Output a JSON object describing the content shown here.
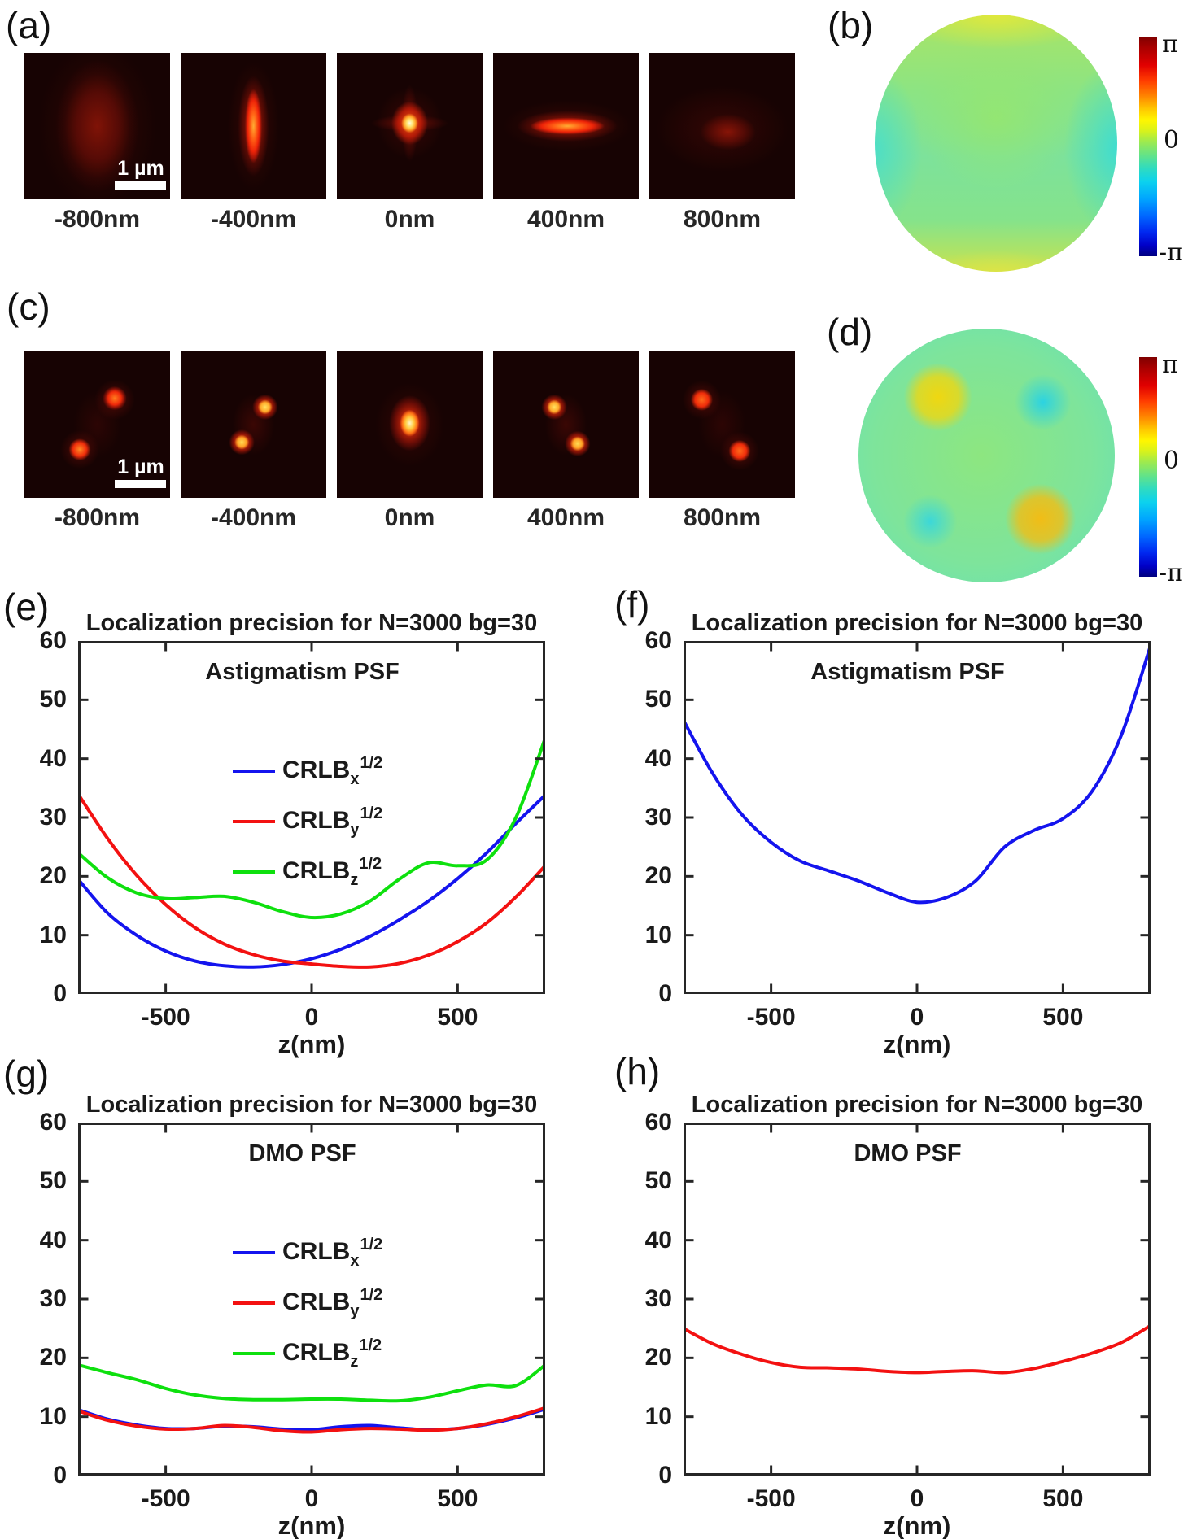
{
  "panel_a": {
    "letter": "(a)",
    "scale_bar_label": "1 µm",
    "z_labels": [
      "-800nm",
      "-400nm",
      "0nm",
      "400nm",
      "800nm"
    ]
  },
  "panel_b": {
    "letter": "(b)",
    "colorbar": {
      "max": "π",
      "zero": "0",
      "min": "-π"
    }
  },
  "panel_c": {
    "letter": "(c)",
    "scale_bar_label": "1 µm",
    "z_labels": [
      "-800nm",
      "-400nm",
      "0nm",
      "400nm",
      "800nm"
    ]
  },
  "panel_d": {
    "letter": "(d)",
    "colorbar": {
      "max": "π",
      "zero": "0",
      "min": "-π"
    }
  },
  "colors": {
    "crlb_x": "#1414ee",
    "crlb_y": "#f31111",
    "crlb_z": "#0ee00e",
    "axis": "#262626"
  },
  "chart_data": [
    {
      "panel_letter": "(e)",
      "type": "line",
      "title": "Localization precision for N=3000 bg=30",
      "inner_label": "Astigmatism PSF",
      "xlabel": "z(nm)",
      "xlim": [
        -800,
        800
      ],
      "ylim": [
        0,
        60
      ],
      "xticks": [
        -500,
        0,
        500
      ],
      "yticks": [
        0,
        10,
        20,
        30,
        40,
        50,
        60
      ],
      "show_legend": true,
      "legend_position": "upper-center-left",
      "grid": false,
      "x": [
        -800,
        -700,
        -600,
        -500,
        -400,
        -300,
        -200,
        -100,
        0,
        100,
        200,
        300,
        400,
        500,
        600,
        700,
        800
      ],
      "series": [
        {
          "name": "CRLB_x^1/2",
          "legend": {
            "base": "CRLB",
            "sub": "x",
            "sup": "1/2"
          },
          "color": "#1414ee",
          "values": [
            19.5,
            13.8,
            10.0,
            7.3,
            5.6,
            4.8,
            4.6,
            5.0,
            6.0,
            7.6,
            9.8,
            12.6,
            15.8,
            19.6,
            24.0,
            29.0,
            33.8
          ]
        },
        {
          "name": "CRLB_y^1/2",
          "legend": {
            "base": "CRLB",
            "sub": "y",
            "sup": "1/2"
          },
          "color": "#f31111",
          "values": [
            34.0,
            26.5,
            20.2,
            15.2,
            11.3,
            8.5,
            6.7,
            5.6,
            5.1,
            4.7,
            4.6,
            5.2,
            6.6,
            8.9,
            12.1,
            16.5,
            21.8
          ]
        },
        {
          "name": "CRLB_z^1/2",
          "legend": {
            "base": "CRLB",
            "sub": "z",
            "sup": "1/2"
          },
          "color": "#0ee00e",
          "values": [
            24.0,
            19.8,
            17.2,
            16.2,
            16.4,
            16.6,
            15.6,
            14.0,
            13.0,
            13.6,
            15.8,
            19.5,
            22.3,
            21.8,
            22.8,
            30.0,
            43.5
          ]
        }
      ]
    },
    {
      "panel_letter": "(f)",
      "type": "line",
      "title": "Localization precision for N=3000 bg=30",
      "inner_label": "Astigmatism PSF",
      "xlabel": "z(nm)",
      "xlim": [
        -800,
        800
      ],
      "ylim": [
        0,
        60
      ],
      "xticks": [
        -500,
        0,
        500
      ],
      "yticks": [
        0,
        10,
        20,
        30,
        40,
        50,
        60
      ],
      "show_legend": false,
      "grid": false,
      "x": [
        -800,
        -700,
        -600,
        -500,
        -400,
        -300,
        -200,
        -100,
        0,
        100,
        200,
        300,
        400,
        500,
        600,
        700,
        800
      ],
      "series": [
        {
          "name": "blue-curve",
          "color": "#1414ee",
          "values": [
            46.5,
            37.5,
            30.5,
            25.8,
            22.6,
            20.9,
            19.2,
            17.2,
            15.6,
            16.4,
            19.2,
            25.0,
            27.8,
            29.8,
            34.5,
            44.0,
            59.2
          ]
        }
      ]
    },
    {
      "panel_letter": "(g)",
      "type": "line",
      "title": "Localization precision for N=3000 bg=30",
      "inner_label": "DMO PSF",
      "xlabel": "z(nm)",
      "xlim": [
        -800,
        800
      ],
      "ylim": [
        0,
        60
      ],
      "xticks": [
        -500,
        0,
        500
      ],
      "yticks": [
        0,
        10,
        20,
        30,
        40,
        50,
        60
      ],
      "show_legend": true,
      "legend_position": "upper-center-left",
      "grid": false,
      "x": [
        -800,
        -700,
        -600,
        -500,
        -400,
        -300,
        -200,
        -100,
        0,
        100,
        200,
        300,
        400,
        500,
        600,
        700,
        800
      ],
      "series": [
        {
          "name": "CRLB_x^1/2",
          "legend": {
            "base": "CRLB",
            "sub": "x",
            "sup": "1/2"
          },
          "color": "#1414ee",
          "values": [
            11.2,
            9.6,
            8.6,
            8.0,
            8.0,
            8.4,
            8.3,
            7.9,
            7.8,
            8.3,
            8.5,
            8.1,
            7.8,
            8.0,
            8.7,
            9.8,
            11.3
          ]
        },
        {
          "name": "CRLB_y^1/2",
          "legend": {
            "base": "CRLB",
            "sub": "y",
            "sup": "1/2"
          },
          "color": "#f31111",
          "values": [
            11.0,
            9.4,
            8.4,
            7.9,
            8.0,
            8.5,
            8.2,
            7.6,
            7.4,
            7.8,
            8.0,
            7.9,
            7.7,
            8.0,
            8.8,
            10.0,
            11.5
          ]
        },
        {
          "name": "CRLB_z^1/2",
          "legend": {
            "base": "CRLB",
            "sub": "z",
            "sup": "1/2"
          },
          "color": "#0ee00e",
          "values": [
            18.8,
            17.5,
            16.3,
            14.8,
            13.7,
            13.1,
            12.9,
            12.9,
            13.0,
            13.0,
            12.8,
            12.7,
            13.3,
            14.4,
            15.4,
            15.3,
            18.8
          ]
        }
      ]
    },
    {
      "panel_letter": "(h)",
      "type": "line",
      "title": "Localization precision for N=3000 bg=30",
      "inner_label": "DMO PSF",
      "xlabel": "z(nm)",
      "xlim": [
        -800,
        800
      ],
      "ylim": [
        0,
        60
      ],
      "xticks": [
        -500,
        0,
        500
      ],
      "yticks": [
        0,
        10,
        20,
        30,
        40,
        50,
        60
      ],
      "show_legend": false,
      "grid": false,
      "x": [
        -800,
        -700,
        -600,
        -500,
        -400,
        -300,
        -200,
        -100,
        0,
        100,
        200,
        300,
        400,
        500,
        600,
        700,
        800
      ],
      "series": [
        {
          "name": "red-curve",
          "color": "#f31111",
          "values": [
            25.0,
            22.4,
            20.6,
            19.2,
            18.4,
            18.3,
            18.1,
            17.7,
            17.5,
            17.7,
            17.8,
            17.5,
            18.2,
            19.4,
            20.8,
            22.6,
            25.5
          ]
        }
      ]
    }
  ]
}
